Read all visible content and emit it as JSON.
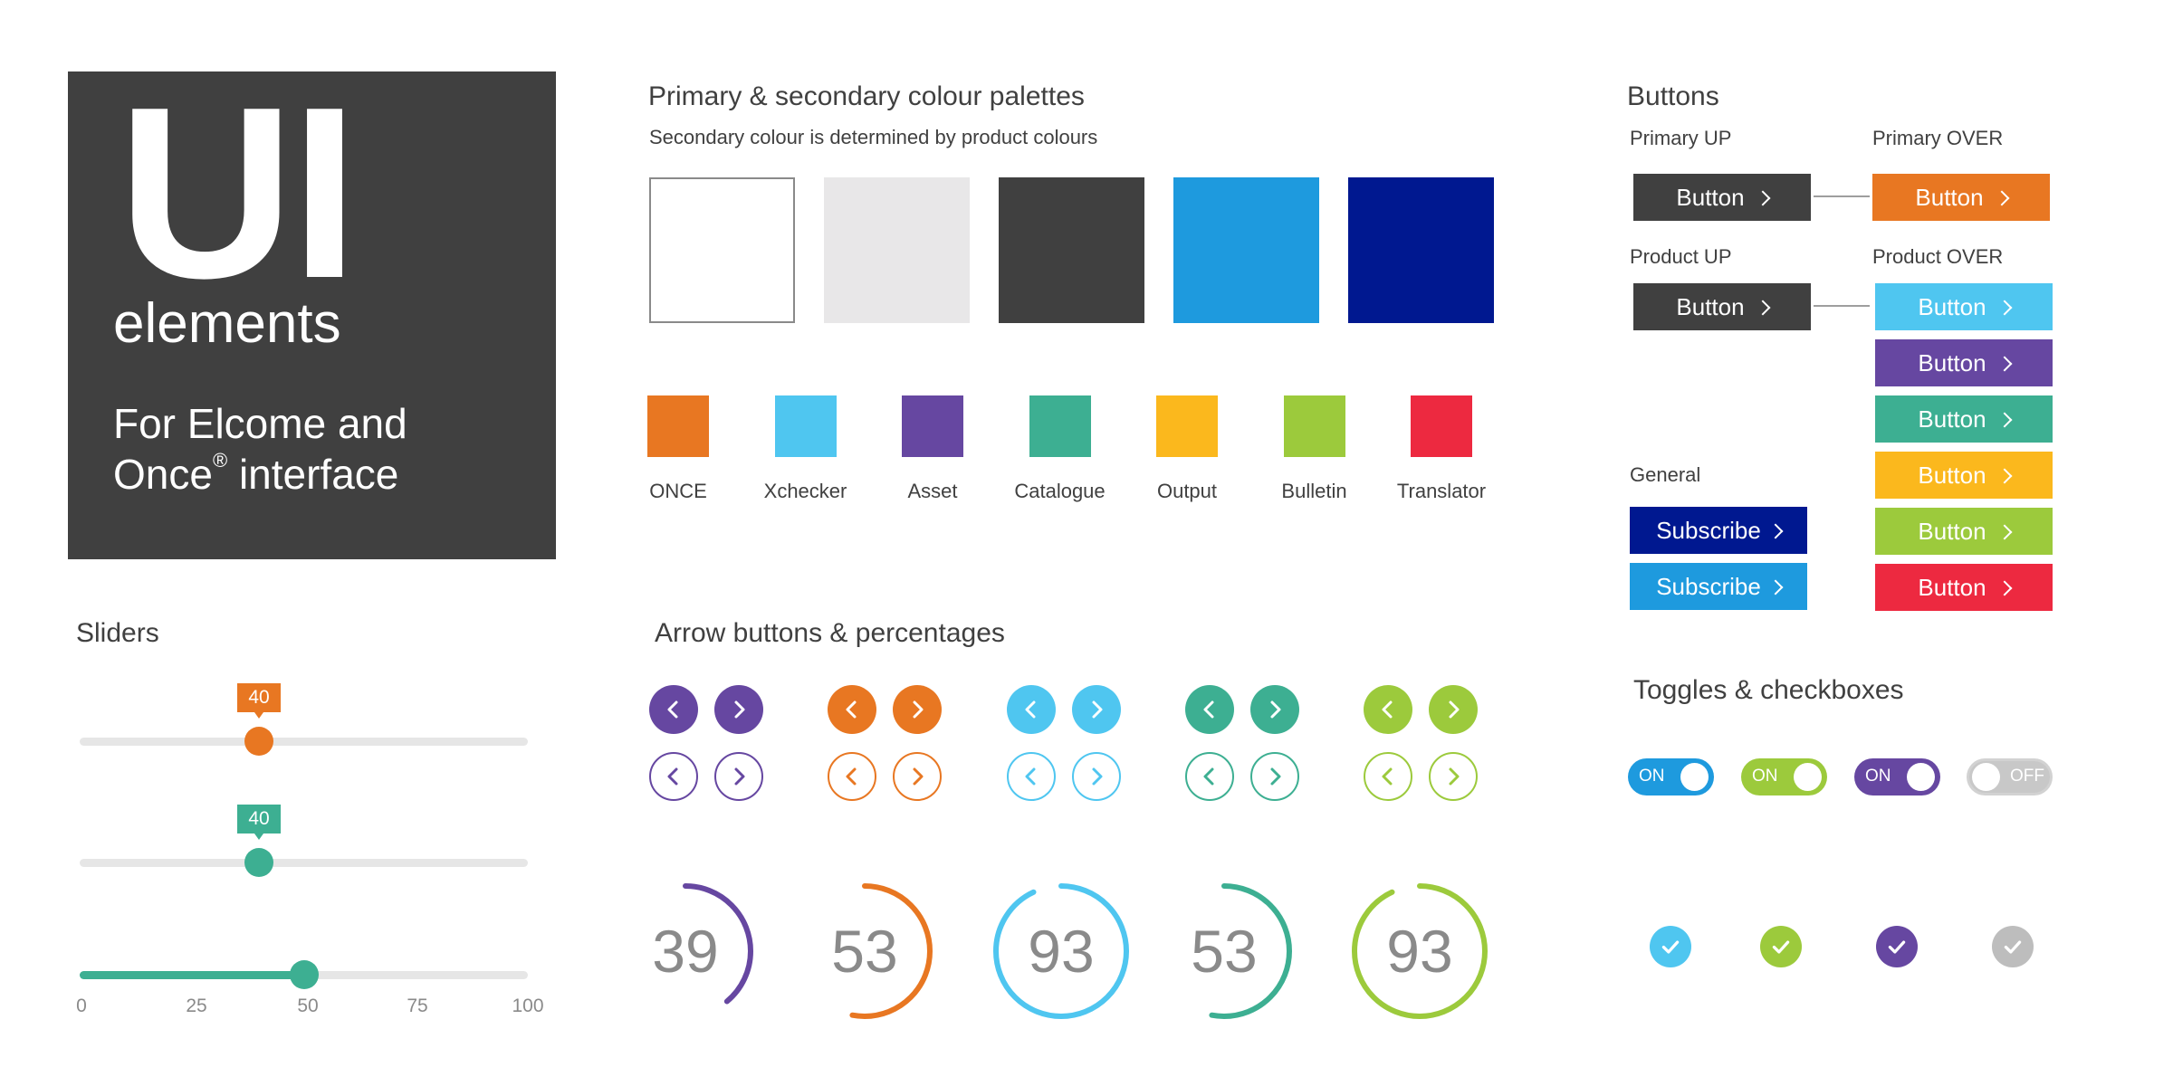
{
  "hero": {
    "title": "UI",
    "subtitle": "elements",
    "tagline_line1": "For Elcome and",
    "tagline_line2_prefix": "Once",
    "tagline_registered": "®",
    "tagline_line2_suffix": " interface",
    "background": "#404040"
  },
  "palettes": {
    "title": "Primary & secondary colour palettes",
    "subtitle": "Secondary colour is determined by product colours",
    "primary_colors": [
      "#ffffff",
      "#e8e7e8",
      "#404040",
      "#1e9ade",
      "#001890"
    ],
    "products": [
      {
        "label": "ONCE",
        "color": "#e87722"
      },
      {
        "label": "Xchecker",
        "color": "#4fc6f0"
      },
      {
        "label": "Asset",
        "color": "#6647a1"
      },
      {
        "label": "Catalogue",
        "color": "#3daf92"
      },
      {
        "label": "Output",
        "color": "#fbb81d"
      },
      {
        "label": "Bulletin",
        "color": "#9cca3c"
      },
      {
        "label": "Translator",
        "color": "#ed2940"
      }
    ]
  },
  "buttons": {
    "title": "Buttons",
    "primary_up_label": "Primary UP",
    "primary_over_label": "Primary OVER",
    "product_up_label": "Product UP",
    "product_over_label": "Product OVER",
    "general_label": "General",
    "button_text": "Button",
    "subscribe_text": "Subscribe",
    "dark": "#404040",
    "primary_over_color": "#e87722",
    "product_over_colors": [
      "#4fc6f0",
      "#6647a1",
      "#3daf92",
      "#fbb81d",
      "#9cca3c",
      "#ed2940"
    ],
    "general_colors": [
      "#001890",
      "#1e9ade"
    ]
  },
  "sliders": {
    "title": "Sliders",
    "slider1": {
      "value": 40,
      "label": "40",
      "color": "#e87722"
    },
    "slider2": {
      "value": 40,
      "label": "40",
      "color": "#3daf92"
    },
    "slider3": {
      "value": 50,
      "color": "#3daf92"
    },
    "ticks": [
      "0",
      "25",
      "50",
      "75",
      "100"
    ]
  },
  "arrows": {
    "title": "Arrow buttons & percentages",
    "colors": [
      "#6647a1",
      "#e87722",
      "#4fc6f0",
      "#3daf92",
      "#9cca3c"
    ]
  },
  "percentages": [
    {
      "value": 39,
      "label": "39",
      "color": "#6647a1"
    },
    {
      "value": 53,
      "label": "53",
      "color": "#e87722"
    },
    {
      "value": 93,
      "label": "93",
      "color": "#4fc6f0"
    },
    {
      "value": 53,
      "label": "53",
      "color": "#3daf92"
    },
    {
      "value": 93,
      "label": "93",
      "color": "#9cca3c"
    }
  ],
  "toggles": {
    "title": "Toggles & checkboxes",
    "items": [
      {
        "text": "ON",
        "state": "on",
        "color": "#1e9ade"
      },
      {
        "text": "ON",
        "state": "on",
        "color": "#9cca3c"
      },
      {
        "text": "ON",
        "state": "on",
        "color": "#6647a1"
      },
      {
        "text": "OFF",
        "state": "off",
        "color": "#c8c8c8"
      }
    ],
    "checkbox_colors": [
      "#4fc6f0",
      "#9cca3c",
      "#6647a1",
      "#bdbdbd"
    ]
  }
}
